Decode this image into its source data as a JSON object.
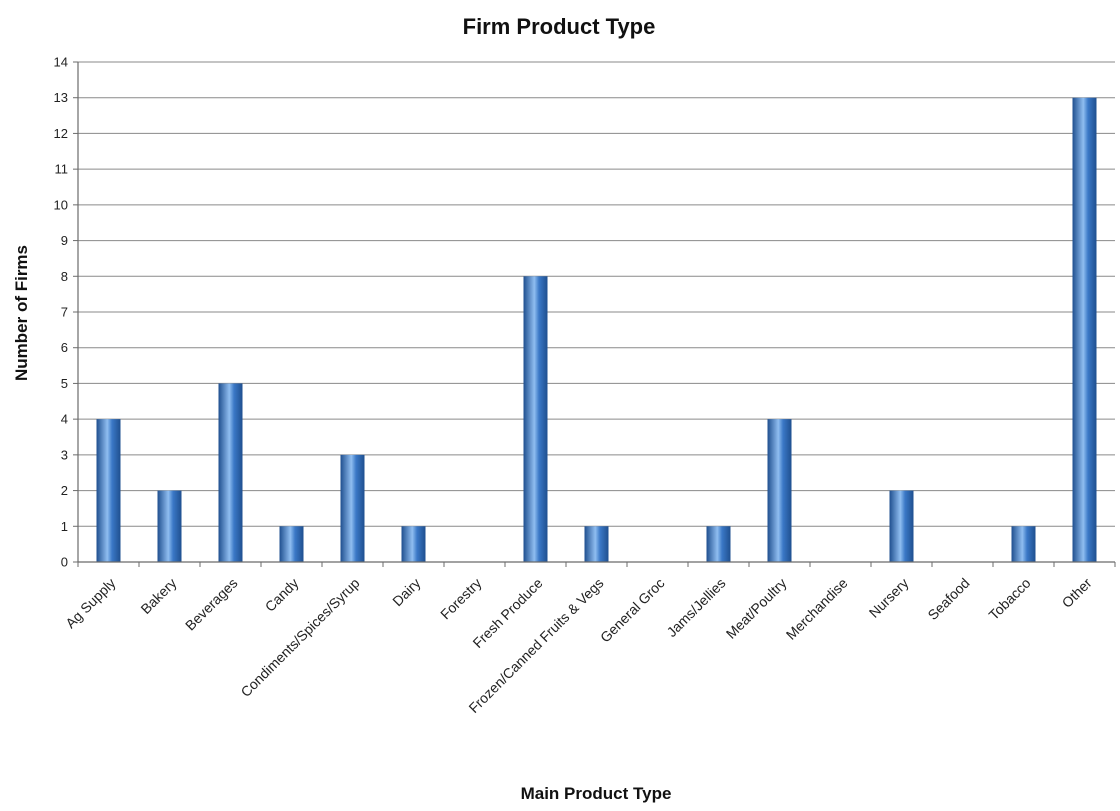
{
  "chart_data": {
    "type": "bar",
    "title": "Firm Product Type",
    "xlabel": "Main Product Type",
    "ylabel": "Number of Firms",
    "categories": [
      "Ag Supply",
      "Bakery",
      "Beverages",
      "Candy",
      "Condiments/Spices/Syrup",
      "Dairy",
      "Forestry",
      "Fresh Produce",
      "Frozen/Canned Fruits & Vegs",
      "General Groc",
      "Jams/Jellies",
      "Meat/Poultry",
      "Merchandise",
      "Nursery",
      "Seafood",
      "Tobacco",
      "Other"
    ],
    "values": [
      4,
      2,
      5,
      1,
      3,
      1,
      0,
      8,
      1,
      0,
      1,
      4,
      0,
      2,
      0,
      1,
      13
    ],
    "yticks": [
      "0",
      "1",
      "2",
      "3",
      "4",
      "5",
      "6",
      "7",
      "8",
      "9",
      "10",
      "11",
      "12",
      "13",
      "14"
    ],
    "ylim": [
      0,
      14
    ],
    "grid": true,
    "legend": "none",
    "bar_color": "#3a78c6",
    "bar_color_dark": "#1f4f8f",
    "bar_color_light": "#8fbdf0"
  }
}
